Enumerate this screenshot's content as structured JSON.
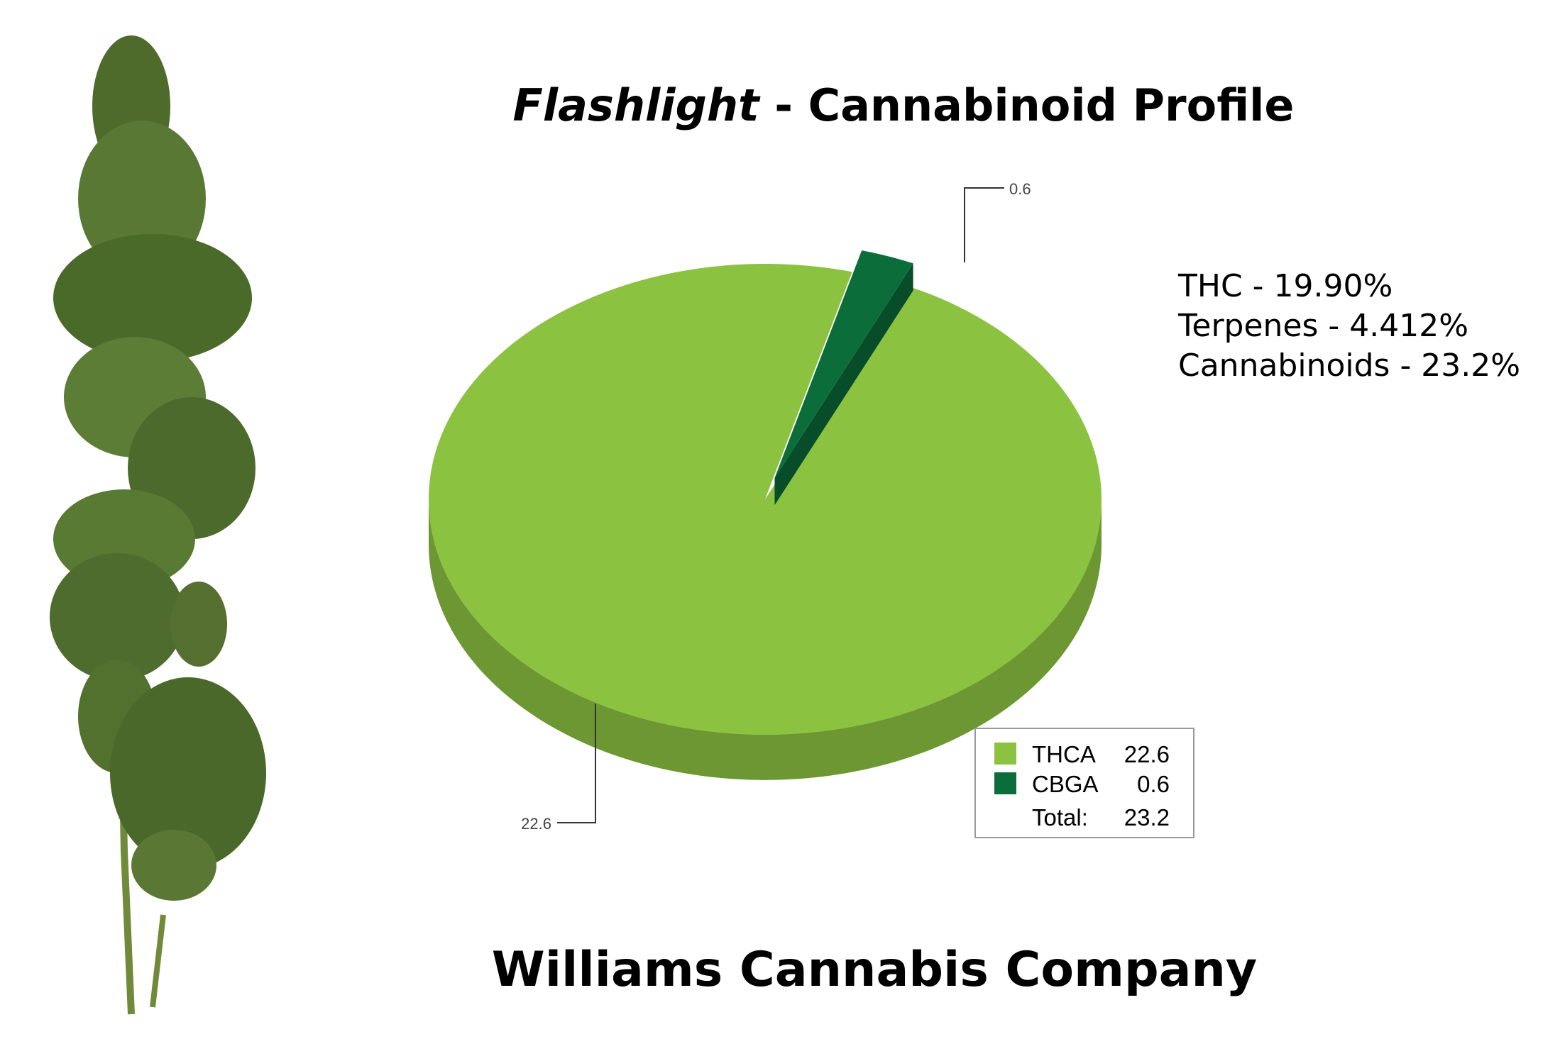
{
  "chart_data": {
    "type": "pie",
    "title_parts": [
      "Flashlight",
      "- Cannabinoid Profile"
    ],
    "categories": [
      "THCA",
      "CBGA"
    ],
    "values": [
      22.6,
      0.6
    ],
    "colors": [
      "#8bc240",
      "#0b6e3a"
    ],
    "legend": {
      "total_label": "Total:",
      "total": 23.2
    },
    "annotations": [
      "THC - 19.90%",
      "Terpenes - 4.412%",
      "Cannabinoids - 23.2%"
    ],
    "footer": "Williams Cannabis Company"
  }
}
